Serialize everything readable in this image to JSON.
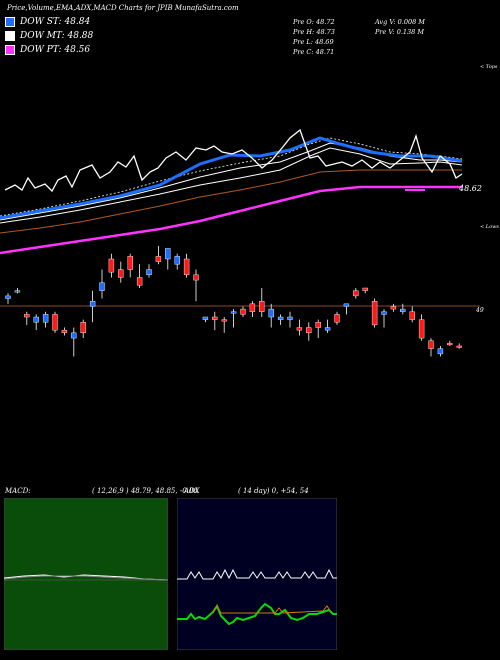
{
  "header": {
    "title": "Price,Volume,EMA,ADX,MACD Charts for JPIB MunafaSutra.com"
  },
  "legend": [
    {
      "label": "DOW ST: 48.84",
      "color": "#1e6fff"
    },
    {
      "label": "DOW MT: 48.88",
      "color": "#ffffff"
    },
    {
      "label": "DOW PT: 48.56",
      "color": "#ff33ff"
    }
  ],
  "ohlc": {
    "open": "Pre  O: 48.72",
    "high": "Pre  H: 48.73",
    "low": "Pre  L: 48.69",
    "close": "Pre  C: 48.71",
    "avg_vol": "Avg V: 0.008  M",
    "pre_vol": "Pre  V: 0.138  M"
  },
  "chart_data": {
    "type": "candlestick",
    "price_label": "48.62",
    "level_label": "49",
    "top_label": "< Tops",
    "lows_label": "< Lows",
    "candles": [
      {
        "o": 48.99,
        "h": 49.01,
        "l": 48.97,
        "c": 49.0,
        "up": true
      },
      {
        "o": 49.02,
        "h": 49.03,
        "l": 49.01,
        "c": 49.02,
        "up": true
      },
      {
        "o": 48.92,
        "h": 48.94,
        "l": 48.89,
        "c": 48.93,
        "up": false
      },
      {
        "o": 48.9,
        "h": 48.93,
        "l": 48.87,
        "c": 48.92,
        "up": true
      },
      {
        "o": 48.9,
        "h": 48.94,
        "l": 48.88,
        "c": 48.93,
        "up": true
      },
      {
        "o": 48.93,
        "h": 48.94,
        "l": 48.86,
        "c": 48.87,
        "up": false
      },
      {
        "o": 48.87,
        "h": 48.88,
        "l": 48.85,
        "c": 48.86,
        "up": false
      },
      {
        "o": 48.84,
        "h": 48.88,
        "l": 48.77,
        "c": 48.86,
        "up": true
      },
      {
        "o": 48.86,
        "h": 48.91,
        "l": 48.84,
        "c": 48.9,
        "up": false
      },
      {
        "o": 48.96,
        "h": 49.02,
        "l": 48.9,
        "c": 48.98,
        "up": true
      },
      {
        "o": 49.02,
        "h": 49.1,
        "l": 48.99,
        "c": 49.05,
        "up": true
      },
      {
        "o": 49.09,
        "h": 49.16,
        "l": 49.07,
        "c": 49.14,
        "up": false
      },
      {
        "o": 49.1,
        "h": 49.13,
        "l": 49.05,
        "c": 49.07,
        "up": false
      },
      {
        "o": 49.1,
        "h": 49.16,
        "l": 49.07,
        "c": 49.15,
        "up": false
      },
      {
        "o": 49.07,
        "h": 49.12,
        "l": 49.03,
        "c": 49.04,
        "up": false
      },
      {
        "o": 49.08,
        "h": 49.12,
        "l": 49.07,
        "c": 49.1,
        "up": true
      },
      {
        "o": 49.15,
        "h": 49.19,
        "l": 49.12,
        "c": 49.13,
        "up": false
      },
      {
        "o": 49.14,
        "h": 49.18,
        "l": 49.1,
        "c": 49.18,
        "up": true
      },
      {
        "o": 49.12,
        "h": 49.16,
        "l": 49.1,
        "c": 49.15,
        "up": true
      },
      {
        "o": 49.14,
        "h": 49.16,
        "l": 49.07,
        "c": 49.08,
        "up": false
      },
      {
        "o": 49.08,
        "h": 49.1,
        "l": 48.98,
        "c": 49.06,
        "up": false
      },
      {
        "o": 48.92,
        "h": 48.92,
        "l": 48.9,
        "c": 48.91,
        "up": true
      },
      {
        "o": 48.92,
        "h": 48.94,
        "l": 48.87,
        "c": 48.91,
        "up": false
      },
      {
        "o": 48.91,
        "h": 48.92,
        "l": 48.86,
        "c": 48.91,
        "up": false
      },
      {
        "o": 48.94,
        "h": 48.95,
        "l": 48.88,
        "c": 48.94,
        "up": true
      },
      {
        "o": 48.95,
        "h": 48.96,
        "l": 48.92,
        "c": 48.93,
        "up": false
      },
      {
        "o": 48.97,
        "h": 48.98,
        "l": 48.92,
        "c": 48.94,
        "up": false
      },
      {
        "o": 48.94,
        "h": 49.03,
        "l": 48.92,
        "c": 48.98,
        "up": false
      },
      {
        "o": 48.92,
        "h": 48.97,
        "l": 48.88,
        "c": 48.95,
        "up": true
      },
      {
        "o": 48.91,
        "h": 48.93,
        "l": 48.89,
        "c": 48.92,
        "up": true
      },
      {
        "o": 48.91,
        "h": 48.94,
        "l": 48.88,
        "c": 48.92,
        "up": true
      },
      {
        "o": 48.88,
        "h": 48.91,
        "l": 48.85,
        "c": 48.87,
        "up": false
      },
      {
        "o": 48.88,
        "h": 48.9,
        "l": 48.83,
        "c": 48.86,
        "up": false
      },
      {
        "o": 48.9,
        "h": 48.91,
        "l": 48.84,
        "c": 48.88,
        "up": false
      },
      {
        "o": 48.87,
        "h": 48.91,
        "l": 48.86,
        "c": 48.88,
        "up": true
      },
      {
        "o": 48.93,
        "h": 48.94,
        "l": 48.89,
        "c": 48.9,
        "up": false
      },
      {
        "o": 48.96,
        "h": 48.97,
        "l": 48.93,
        "c": 48.97,
        "up": true
      },
      {
        "o": 49.0,
        "h": 49.03,
        "l": 48.99,
        "c": 49.02,
        "up": false
      },
      {
        "o": 49.02,
        "h": 49.03,
        "l": 49.01,
        "c": 49.03,
        "up": false
      },
      {
        "o": 48.98,
        "h": 48.99,
        "l": 48.88,
        "c": 48.89,
        "up": false
      },
      {
        "o": 48.93,
        "h": 48.95,
        "l": 48.88,
        "c": 48.94,
        "up": true
      },
      {
        "o": 48.96,
        "h": 48.97,
        "l": 48.94,
        "c": 48.95,
        "up": false
      },
      {
        "o": 48.95,
        "h": 48.97,
        "l": 48.93,
        "c": 48.94,
        "up": true
      },
      {
        "o": 48.94,
        "h": 48.96,
        "l": 48.9,
        "c": 48.91,
        "up": false
      },
      {
        "o": 48.91,
        "h": 48.93,
        "l": 48.83,
        "c": 48.84,
        "up": false
      },
      {
        "o": 48.83,
        "h": 48.84,
        "l": 48.77,
        "c": 48.8,
        "up": false
      },
      {
        "o": 48.78,
        "h": 48.81,
        "l": 48.77,
        "c": 48.8,
        "up": true
      },
      {
        "o": 48.82,
        "h": 48.83,
        "l": 48.81,
        "c": 48.82,
        "up": false
      },
      {
        "o": 48.81,
        "h": 48.82,
        "l": 48.8,
        "c": 48.81,
        "up": false
      }
    ]
  },
  "macd": {
    "label": "MACD:",
    "values": "( 12,26,9 ) 48.79,  48.85,  -0.06"
  },
  "adx": {
    "label": "ADX",
    "values": "( 14  day) 0,  +54,  54"
  }
}
